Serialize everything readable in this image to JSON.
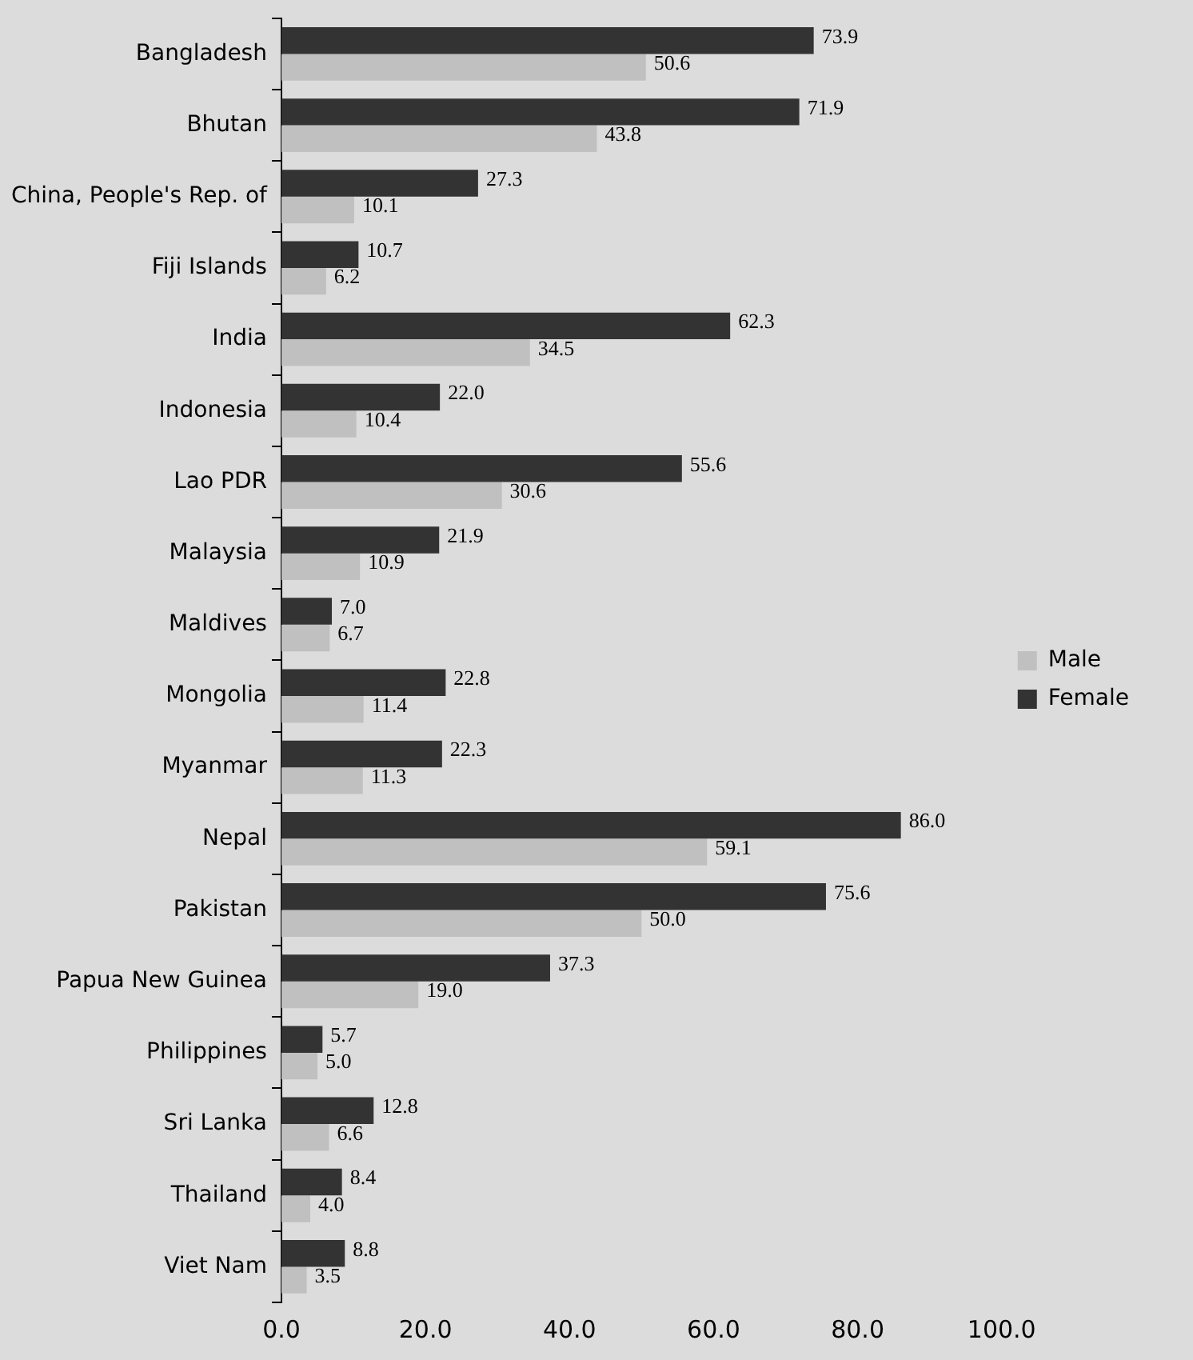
{
  "chart_data": {
    "type": "bar",
    "orientation": "horizontal",
    "categories": [
      "Bangladesh",
      "Bhutan",
      "China, People's Rep. of",
      "Fiji Islands",
      "India",
      "Indonesia",
      "Lao PDR",
      "Malaysia",
      "Maldives",
      "Mongolia",
      "Myanmar",
      "Nepal",
      "Pakistan",
      "Papua New Guinea",
      "Philippines",
      "Sri Lanka",
      "Thailand",
      "Viet Nam"
    ],
    "series": [
      {
        "name": "Male",
        "color": "#c0c0c0",
        "values": [
          50.6,
          43.8,
          10.1,
          6.2,
          34.5,
          10.4,
          30.6,
          10.9,
          6.7,
          11.4,
          11.3,
          59.1,
          50.0,
          19.0,
          5.0,
          6.6,
          4.0,
          3.5
        ],
        "value_labels": [
          "50.6",
          "43.8",
          "10.1",
          "6.2",
          "34.5",
          "10.4",
          "30.6",
          "10.9",
          "6.7",
          "11.4",
          "11.3",
          "59.1",
          "50.0",
          "19.0",
          "5.0",
          "6.6",
          "4.0",
          "3.5"
        ]
      },
      {
        "name": "Female",
        "color": "#333333",
        "values": [
          73.9,
          71.9,
          27.3,
          10.7,
          62.3,
          22.0,
          55.6,
          21.9,
          7.0,
          22.8,
          22.3,
          86.0,
          75.6,
          37.3,
          5.7,
          12.8,
          8.4,
          8.8
        ],
        "value_labels": [
          "73.9",
          "71.9",
          "27.3",
          "10.7",
          "62.3",
          "22.0",
          "55.6",
          "21.9",
          "7.0",
          "22.8",
          "22.3",
          "86.0",
          "75.6",
          "37.3",
          "5.7",
          "12.8",
          "8.4",
          "8.8"
        ]
      }
    ],
    "xlim": [
      0,
      100
    ],
    "xticks": [
      {
        "value": 0,
        "label": "0.0"
      },
      {
        "value": 20,
        "label": "20.0"
      },
      {
        "value": 40,
        "label": "40.0"
      },
      {
        "value": 60,
        "label": "60.0"
      },
      {
        "value": 80,
        "label": "80.0"
      },
      {
        "value": 100,
        "label": "100.0"
      }
    ],
    "grid": false,
    "legend": "right"
  }
}
